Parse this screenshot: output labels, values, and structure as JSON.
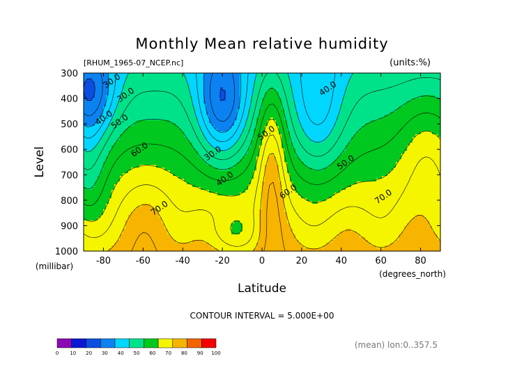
{
  "chart_data": {
    "type": "contour",
    "title": "Monthly Mean relative humidity",
    "subtitle_left": "[RHUM_1965-07_NCEP.nc]",
    "subtitle_right": "(units:%)",
    "xlabel": "Latitude",
    "ylabel": "Level",
    "x_units": "(degrees_north)",
    "y_units": "(millibar)",
    "xlim": [
      -90,
      90
    ],
    "ylim": [
      1000,
      300
    ],
    "x_ticks": [
      "-80",
      "-60",
      "-40",
      "-20",
      "0",
      "20",
      "40",
      "60",
      "80"
    ],
    "y_ticks": [
      "300",
      "400",
      "500",
      "600",
      "700",
      "800",
      "900",
      "1000"
    ],
    "contour_interval_text": "CONTOUR INTERVAL = 5.000E+00",
    "footer_text": "(mean) lon:0..357.5",
    "contour_labels": [
      {
        "text": "30.0",
        "lat": -75,
        "lev": 340
      },
      {
        "text": "30.0",
        "lat": -68,
        "lev": 395
      },
      {
        "text": "40.0",
        "lat": -79,
        "lev": 485
      },
      {
        "text": "50.0",
        "lat": -71,
        "lev": 500
      },
      {
        "text": "60.0",
        "lat": -61,
        "lev": 610
      },
      {
        "text": "30.0",
        "lat": -24,
        "lev": 625
      },
      {
        "text": "40.0",
        "lat": -18,
        "lev": 725
      },
      {
        "text": "50.0",
        "lat": 3,
        "lev": 545
      },
      {
        "text": "60.0",
        "lat": 14,
        "lev": 775
      },
      {
        "text": "70.0",
        "lat": -51,
        "lev": 840
      },
      {
        "text": "40.0",
        "lat": 34,
        "lev": 370
      },
      {
        "text": "50.0",
        "lat": 43,
        "lev": 660
      },
      {
        "text": "70.0",
        "lat": 62,
        "lev": 795
      }
    ],
    "colorbar": {
      "levels": [
        "0",
        "10",
        "20",
        "30",
        "40",
        "50",
        "60",
        "70",
        "80",
        "90",
        "100"
      ],
      "colors": [
        "#8a0bb5",
        "#0a18d4",
        "#0c4ee0",
        "#0c82f0",
        "#00d6ff",
        "#00e28a",
        "#00c81e",
        "#f5f500",
        "#f7b400",
        "#f26400",
        "#f50000"
      ]
    }
  }
}
